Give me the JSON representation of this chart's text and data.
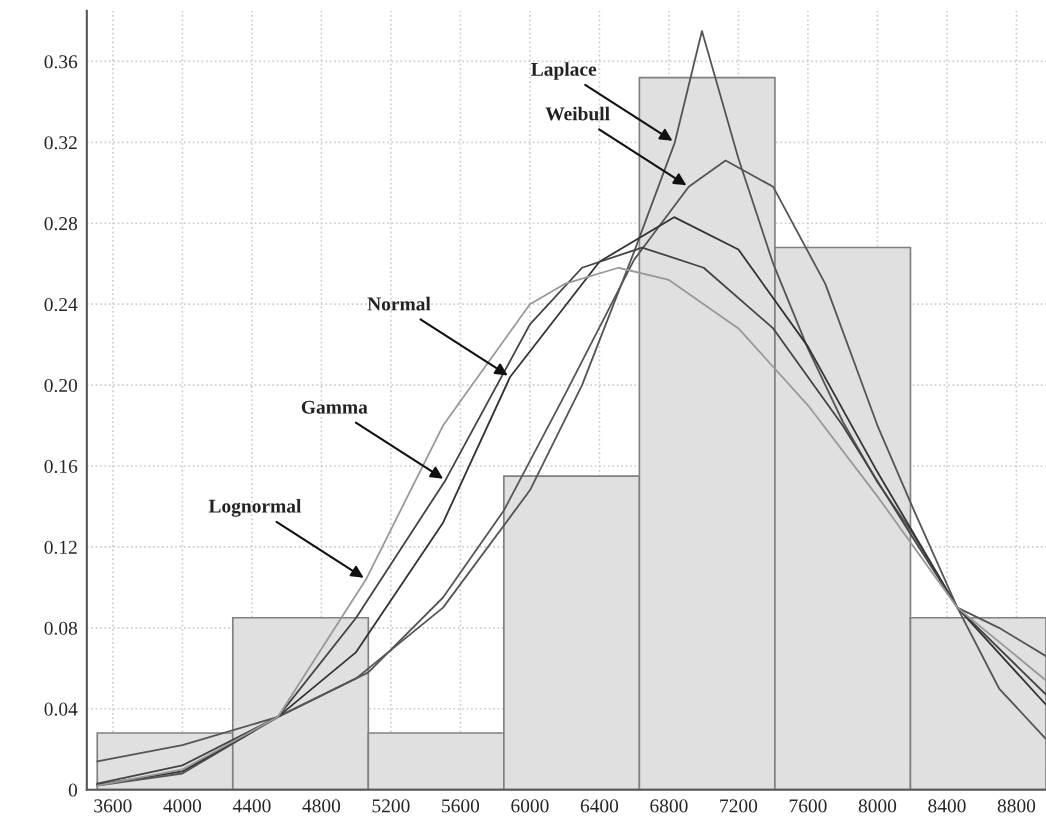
{
  "chart_data": {
    "type": "histogram",
    "bins": [
      3510,
      4290,
      5070,
      5850,
      6630,
      7410,
      8190,
      8970
    ],
    "values": [
      0.028,
      0.085,
      0.028,
      0.155,
      0.352,
      0.268,
      0.085
    ],
    "color": "#e0e0e0",
    "series": [
      {
        "type": "line",
        "color": "#555555",
        "x": [
          3510,
          4000,
          4550,
          5000,
          5500,
          6000,
          6300,
          6600,
          6834,
          6990,
          7200,
          7400,
          7600,
          7800,
          8000,
          8200,
          8460,
          8700,
          8970
        ],
        "values": [
          0.014,
          0.022,
          0.036,
          0.055,
          0.09,
          0.148,
          0.2,
          0.266,
          0.32,
          0.375,
          0.312,
          0.26,
          0.218,
          0.182,
          0.152,
          0.127,
          0.09,
          0.08,
          0.066
        ]
      },
      {
        "type": "line",
        "color": "#555555",
        "x": [
          3510,
          4000,
          4550,
          5070,
          5500,
          5850,
          6200,
          6600,
          6914,
          7126,
          7400,
          7700,
          8000,
          8200,
          8460,
          8700,
          8970
        ],
        "values": [
          0.002,
          0.008,
          0.036,
          0.058,
          0.095,
          0.138,
          0.195,
          0.262,
          0.298,
          0.311,
          0.298,
          0.25,
          0.18,
          0.14,
          0.09,
          0.05,
          0.025
        ]
      },
      {
        "type": "line",
        "color": "#333333",
        "x": [
          3510,
          4000,
          4550,
          5000,
          5500,
          5886,
          6400,
          6830,
          7200,
          7600,
          8000,
          8460,
          8970
        ],
        "values": [
          0.0025,
          0.009,
          0.036,
          0.068,
          0.132,
          0.204,
          0.261,
          0.283,
          0.267,
          0.219,
          0.157,
          0.09,
          0.042
        ]
      },
      {
        "type": "line",
        "color": "#444444",
        "x": [
          3510,
          4000,
          4550,
          5000,
          5514,
          6000,
          6300,
          6646,
          7000,
          7400,
          7800,
          8200,
          8460,
          8970
        ],
        "values": [
          0.003,
          0.012,
          0.036,
          0.085,
          0.153,
          0.23,
          0.258,
          0.268,
          0.258,
          0.228,
          0.18,
          0.125,
          0.09,
          0.047
        ]
      },
      {
        "type": "line",
        "color": "#999999",
        "x": [
          3510,
          4000,
          4550,
          5057,
          5500,
          6000,
          6200,
          6509,
          6800,
          7200,
          7600,
          8000,
          8460,
          8970
        ],
        "values": [
          0.002,
          0.01,
          0.036,
          0.104,
          0.18,
          0.24,
          0.25,
          0.258,
          0.252,
          0.228,
          0.19,
          0.145,
          0.09,
          0.054
        ]
      }
    ],
    "annotations": [
      {
        "text": "Laplace",
        "x": 6834,
        "y": 0.32
      },
      {
        "text": "Weibull",
        "x": 6914,
        "y": 0.298
      },
      {
        "text": "Normal",
        "x": 5886,
        "y": 0.204
      },
      {
        "text": "Gamma",
        "x": 5514,
        "y": 0.153
      },
      {
        "text": "Lognormal",
        "x": 5057,
        "y": 0.104
      }
    ],
    "xlim": [
      3450,
      8970
    ],
    "ylim": [
      0,
      0.385
    ],
    "xticks": [
      3600,
      4000,
      4400,
      4800,
      5200,
      5600,
      6000,
      6400,
      6800,
      7200,
      7600,
      8000,
      8400,
      8800
    ],
    "yticks": [
      0,
      {
        "value": 0.04,
        "label": "0.04"
      },
      {
        "value": 0.08,
        "label": "0.08"
      },
      {
        "value": 0.12,
        "label": "0.12"
      },
      {
        "value": 0.16,
        "label": "0.16"
      },
      {
        "value": 0.2,
        "label": "0.20"
      },
      {
        "value": 0.24,
        "label": "0.24"
      },
      {
        "value": 0.28,
        "label": "0.28"
      },
      {
        "value": 0.32,
        "label": "0.32"
      },
      {
        "value": 0.36,
        "label": "0.36"
      }
    ],
    "grid": true,
    "legend": false
  }
}
